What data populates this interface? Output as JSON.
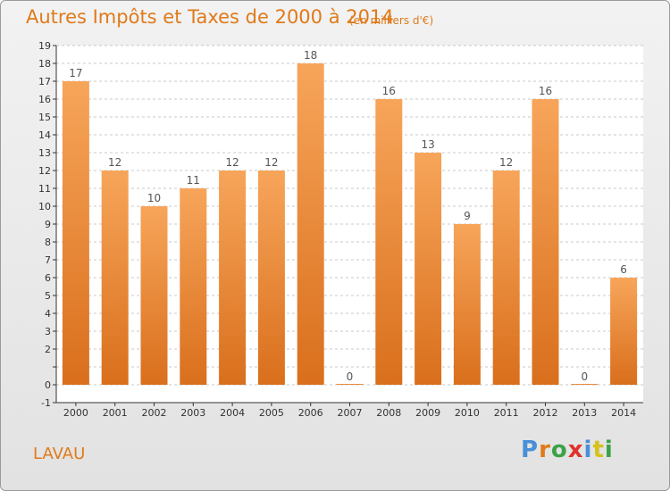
{
  "chart_data": {
    "type": "bar",
    "title": "Autres Impôts et Taxes de 2000 à 2014",
    "subtitle": "(en milliers d'€)",
    "categories": [
      "2000",
      "2001",
      "2002",
      "2003",
      "2004",
      "2005",
      "2006",
      "2007",
      "2008",
      "2009",
      "2010",
      "2011",
      "2012",
      "2013",
      "2014"
    ],
    "values": [
      17,
      12,
      10,
      11,
      12,
      12,
      18,
      0,
      16,
      13,
      9,
      12,
      16,
      0,
      6
    ],
    "data_labels": [
      "17",
      "12",
      "10",
      "11",
      "12",
      "12",
      "18",
      "0",
      "16",
      "13",
      "9",
      "12",
      "16",
      "0",
      "6"
    ],
    "ylim": [
      -1,
      19
    ],
    "yticks": [
      "-1",
      "0",
      "",
      "2",
      "3",
      "4",
      "5",
      "6",
      "7",
      "8",
      "9",
      "10",
      "11",
      "12",
      "13",
      "14",
      "15",
      "16",
      "17",
      "18",
      "19"
    ],
    "grid": true,
    "bar_color_top": "#f7a55a",
    "bar_color_bottom": "#d96f1c"
  },
  "footer": {
    "place": "LAVAU",
    "logo": "Proxiti",
    "logo_letter_colors": [
      "#4a8fd8",
      "#e07a1a",
      "#3aa347",
      "#e0312c",
      "#4a8fd8",
      "#d5c21b",
      "#3aa347"
    ]
  }
}
